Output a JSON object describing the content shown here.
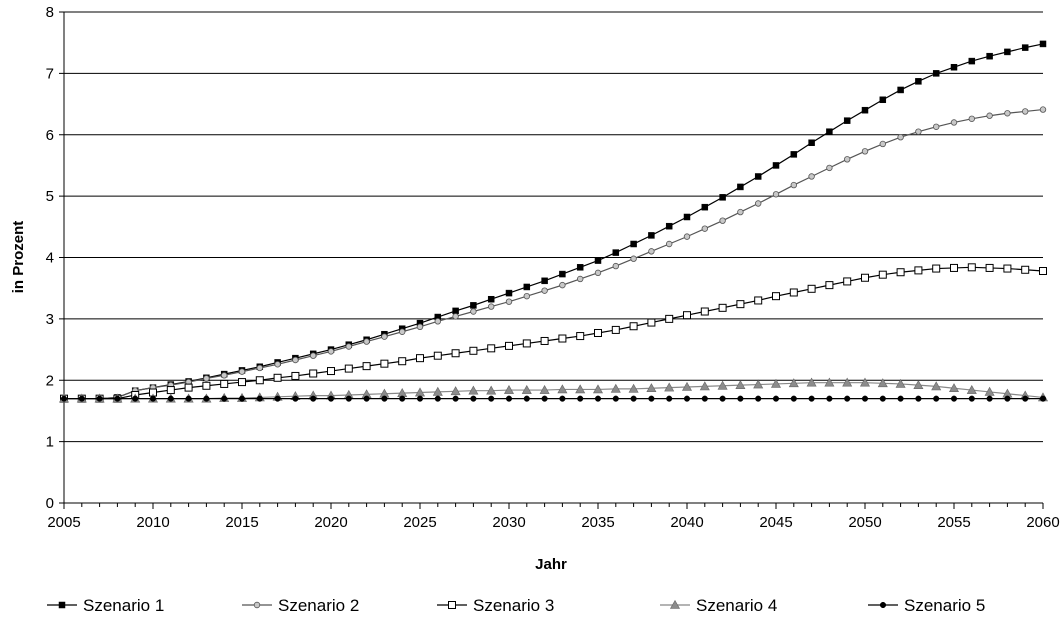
{
  "chart_data": {
    "type": "line",
    "xlabel": "Jahr",
    "ylabel": "in Prozent",
    "xlim": [
      2005,
      2060
    ],
    "ylim": [
      0,
      8
    ],
    "x_ticks": [
      2005,
      2010,
      2015,
      2020,
      2025,
      2030,
      2035,
      2040,
      2045,
      2050,
      2055,
      2060
    ],
    "y_ticks": [
      0,
      1,
      2,
      3,
      4,
      5,
      6,
      7,
      8
    ],
    "grid": "horizontal",
    "legend_position": "bottom",
    "x": [
      2005,
      2006,
      2007,
      2008,
      2009,
      2010,
      2011,
      2012,
      2013,
      2014,
      2015,
      2016,
      2017,
      2018,
      2019,
      2020,
      2021,
      2022,
      2023,
      2024,
      2025,
      2026,
      2027,
      2028,
      2029,
      2030,
      2031,
      2032,
      2033,
      2034,
      2035,
      2036,
      2037,
      2038,
      2039,
      2040,
      2041,
      2042,
      2043,
      2044,
      2045,
      2046,
      2047,
      2048,
      2049,
      2050,
      2051,
      2052,
      2053,
      2054,
      2055,
      2056,
      2057,
      2058,
      2059,
      2060
    ],
    "series": [
      {
        "name": "Szenario 1",
        "color": "#000000",
        "marker": "square-filled",
        "values": [
          1.7,
          1.7,
          1.7,
          1.72,
          1.83,
          1.88,
          1.93,
          1.98,
          2.04,
          2.1,
          2.16,
          2.22,
          2.29,
          2.36,
          2.43,
          2.5,
          2.58,
          2.66,
          2.75,
          2.84,
          2.93,
          3.03,
          3.13,
          3.22,
          3.32,
          3.42,
          3.52,
          3.62,
          3.73,
          3.84,
          3.95,
          4.08,
          4.22,
          4.36,
          4.51,
          4.66,
          4.82,
          4.98,
          5.15,
          5.32,
          5.5,
          5.68,
          5.87,
          6.05,
          6.23,
          6.4,
          6.57,
          6.73,
          6.87,
          7.0,
          7.1,
          7.2,
          7.28,
          7.35,
          7.42,
          7.48
        ]
      },
      {
        "name": "Szenario 2",
        "color": "#555555",
        "marker": "circle-grey",
        "values": [
          1.7,
          1.7,
          1.7,
          1.72,
          1.83,
          1.88,
          1.92,
          1.97,
          2.03,
          2.08,
          2.14,
          2.2,
          2.26,
          2.33,
          2.4,
          2.47,
          2.55,
          2.63,
          2.71,
          2.79,
          2.87,
          2.96,
          3.04,
          3.12,
          3.2,
          3.28,
          3.37,
          3.46,
          3.55,
          3.65,
          3.75,
          3.86,
          3.98,
          4.1,
          4.22,
          4.34,
          4.47,
          4.6,
          4.74,
          4.88,
          5.03,
          5.18,
          5.32,
          5.46,
          5.6,
          5.73,
          5.85,
          5.96,
          6.05,
          6.13,
          6.2,
          6.26,
          6.31,
          6.35,
          6.38,
          6.41
        ]
      },
      {
        "name": "Szenario 3",
        "color": "#000000",
        "marker": "square-open",
        "values": [
          1.7,
          1.7,
          1.7,
          1.7,
          1.76,
          1.8,
          1.84,
          1.88,
          1.91,
          1.94,
          1.97,
          2.0,
          2.04,
          2.07,
          2.11,
          2.15,
          2.19,
          2.23,
          2.27,
          2.31,
          2.36,
          2.4,
          2.44,
          2.48,
          2.52,
          2.56,
          2.6,
          2.64,
          2.68,
          2.72,
          2.77,
          2.82,
          2.88,
          2.94,
          3.0,
          3.06,
          3.12,
          3.18,
          3.24,
          3.3,
          3.37,
          3.43,
          3.49,
          3.55,
          3.61,
          3.67,
          3.72,
          3.76,
          3.79,
          3.82,
          3.83,
          3.84,
          3.83,
          3.82,
          3.8,
          3.78
        ]
      },
      {
        "name": "Szenario 4",
        "color": "#888888",
        "marker": "triangle-grey",
        "values": [
          1.7,
          1.7,
          1.7,
          1.7,
          1.7,
          1.7,
          1.7,
          1.7,
          1.7,
          1.71,
          1.71,
          1.72,
          1.73,
          1.74,
          1.75,
          1.75,
          1.76,
          1.77,
          1.78,
          1.79,
          1.8,
          1.81,
          1.82,
          1.83,
          1.83,
          1.84,
          1.84,
          1.84,
          1.85,
          1.85,
          1.85,
          1.86,
          1.86,
          1.87,
          1.88,
          1.89,
          1.9,
          1.91,
          1.92,
          1.93,
          1.94,
          1.95,
          1.96,
          1.96,
          1.96,
          1.96,
          1.95,
          1.94,
          1.92,
          1.9,
          1.87,
          1.84,
          1.81,
          1.78,
          1.75,
          1.72
        ]
      },
      {
        "name": "Szenario 5",
        "color": "#000000",
        "marker": "circle-filled",
        "values": [
          1.7,
          1.7,
          1.7,
          1.7,
          1.7,
          1.7,
          1.7,
          1.7,
          1.7,
          1.7,
          1.7,
          1.7,
          1.7,
          1.7,
          1.7,
          1.7,
          1.7,
          1.7,
          1.7,
          1.7,
          1.7,
          1.7,
          1.7,
          1.7,
          1.7,
          1.7,
          1.7,
          1.7,
          1.7,
          1.7,
          1.7,
          1.7,
          1.7,
          1.7,
          1.7,
          1.7,
          1.7,
          1.7,
          1.7,
          1.7,
          1.7,
          1.7,
          1.7,
          1.7,
          1.7,
          1.7,
          1.7,
          1.7,
          1.7,
          1.7,
          1.7,
          1.7,
          1.7,
          1.7,
          1.7,
          1.7
        ]
      }
    ]
  }
}
